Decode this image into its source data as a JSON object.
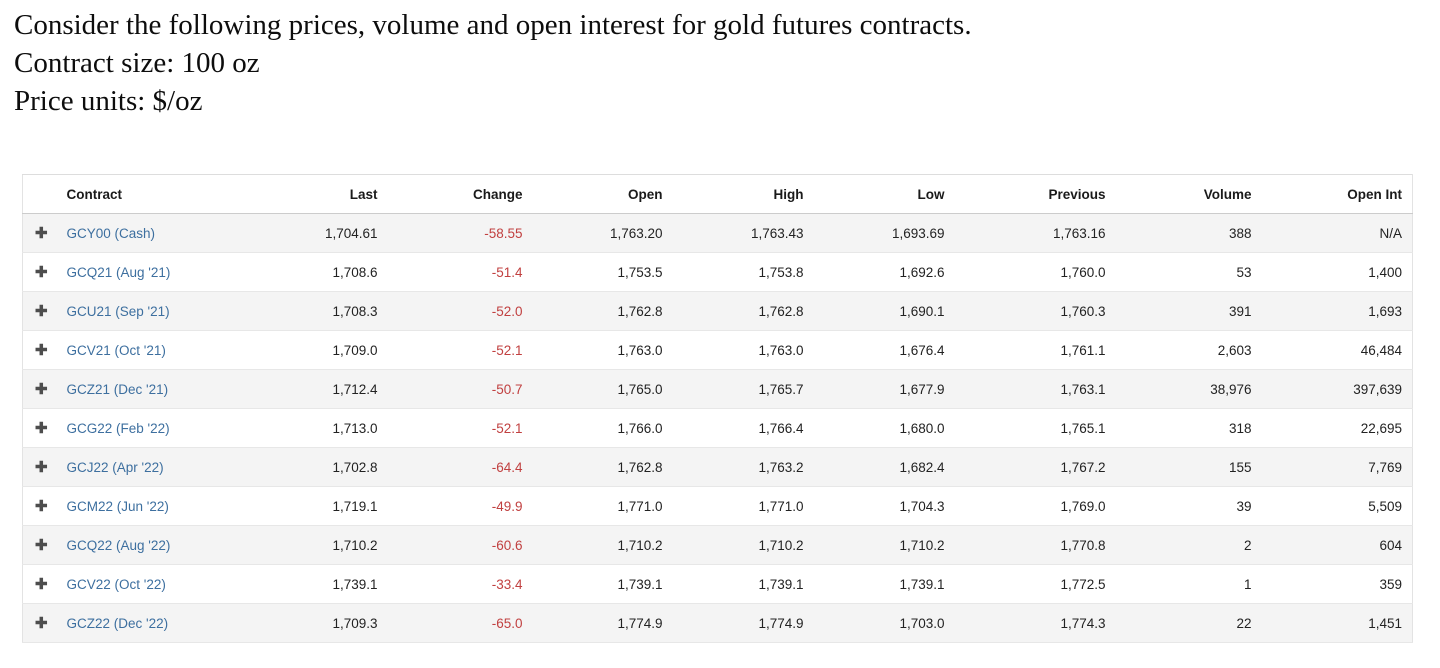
{
  "intro": {
    "line1": "Consider the following prices, volume and open interest for gold futures contracts.",
    "line2": "Contract size: 100 oz",
    "line3": "Price units: $/oz"
  },
  "icons": {
    "expand": "✚"
  },
  "colors": {
    "link_blue": "#3d6f9f",
    "change_red": "#c14040",
    "row_alt_gray": "#f4f4f4"
  },
  "table": {
    "columns": [
      "Contract",
      "Last",
      "Change",
      "Open",
      "High",
      "Low",
      "Previous",
      "Volume",
      "Open Int"
    ],
    "rows": [
      {
        "contract": "GCY00 (Cash)",
        "last": "1,704.61",
        "change": "-58.55",
        "open": "1,763.20",
        "high": "1,763.43",
        "low": "1,693.69",
        "previous": "1,763.16",
        "volume": "388",
        "open_int": "N/A"
      },
      {
        "contract": "GCQ21 (Aug '21)",
        "last": "1,708.6",
        "change": "-51.4",
        "open": "1,753.5",
        "high": "1,753.8",
        "low": "1,692.6",
        "previous": "1,760.0",
        "volume": "53",
        "open_int": "1,400"
      },
      {
        "contract": "GCU21 (Sep '21)",
        "last": "1,708.3",
        "change": "-52.0",
        "open": "1,762.8",
        "high": "1,762.8",
        "low": "1,690.1",
        "previous": "1,760.3",
        "volume": "391",
        "open_int": "1,693"
      },
      {
        "contract": "GCV21 (Oct '21)",
        "last": "1,709.0",
        "change": "-52.1",
        "open": "1,763.0",
        "high": "1,763.0",
        "low": "1,676.4",
        "previous": "1,761.1",
        "volume": "2,603",
        "open_int": "46,484"
      },
      {
        "contract": "GCZ21 (Dec '21)",
        "last": "1,712.4",
        "change": "-50.7",
        "open": "1,765.0",
        "high": "1,765.7",
        "low": "1,677.9",
        "previous": "1,763.1",
        "volume": "38,976",
        "open_int": "397,639"
      },
      {
        "contract": "GCG22 (Feb '22)",
        "last": "1,713.0",
        "change": "-52.1",
        "open": "1,766.0",
        "high": "1,766.4",
        "low": "1,680.0",
        "previous": "1,765.1",
        "volume": "318",
        "open_int": "22,695"
      },
      {
        "contract": "GCJ22 (Apr '22)",
        "last": "1,702.8",
        "change": "-64.4",
        "open": "1,762.8",
        "high": "1,763.2",
        "low": "1,682.4",
        "previous": "1,767.2",
        "volume": "155",
        "open_int": "7,769"
      },
      {
        "contract": "GCM22 (Jun '22)",
        "last": "1,719.1",
        "change": "-49.9",
        "open": "1,771.0",
        "high": "1,771.0",
        "low": "1,704.3",
        "previous": "1,769.0",
        "volume": "39",
        "open_int": "5,509"
      },
      {
        "contract": "GCQ22 (Aug '22)",
        "last": "1,710.2",
        "change": "-60.6",
        "open": "1,710.2",
        "high": "1,710.2",
        "low": "1,710.2",
        "previous": "1,770.8",
        "volume": "2",
        "open_int": "604"
      },
      {
        "contract": "GCV22 (Oct '22)",
        "last": "1,739.1",
        "change": "-33.4",
        "open": "1,739.1",
        "high": "1,739.1",
        "low": "1,739.1",
        "previous": "1,772.5",
        "volume": "1",
        "open_int": "359"
      },
      {
        "contract": "GCZ22 (Dec '22)",
        "last": "1,709.3",
        "change": "-65.0",
        "open": "1,774.9",
        "high": "1,774.9",
        "low": "1,703.0",
        "previous": "1,774.3",
        "volume": "22",
        "open_int": "1,451"
      }
    ]
  }
}
